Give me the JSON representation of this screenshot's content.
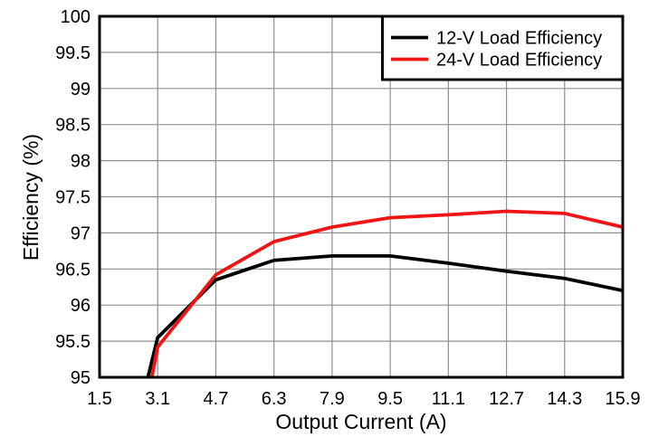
{
  "chart_data": {
    "type": "line",
    "title": "",
    "xlabel": "Output Current (A)",
    "ylabel": "Efficiency (%)",
    "xlim": [
      1.5,
      15.9
    ],
    "ylim": [
      95,
      100
    ],
    "grid": true,
    "legend_position": "top-right",
    "x_ticks": [
      "1.5",
      "3.1",
      "4.7",
      "6.3",
      "7.9",
      "9.5",
      "11.1",
      "12.7",
      "14.3",
      "15.9"
    ],
    "y_ticks": [
      "95",
      "95.5",
      "96",
      "96.5",
      "97",
      "97.5",
      "98",
      "98.5",
      "99",
      "99.5",
      "100"
    ],
    "x": [
      2.83,
      3.1,
      4.7,
      6.3,
      7.9,
      9.5,
      11.1,
      12.7,
      14.3,
      15.9
    ],
    "series": [
      {
        "name": "12-V Load Efficiency",
        "color": "#000000",
        "values": [
          95.0,
          95.55,
          96.35,
          96.62,
          96.68,
          96.68,
          96.58,
          96.47,
          96.37,
          96.2
        ]
      },
      {
        "name": "24-V Load Efficiency",
        "color": "#f01414",
        "values": [
          94.72,
          95.42,
          96.42,
          96.88,
          97.08,
          97.21,
          97.25,
          97.3,
          97.27,
          97.08
        ]
      }
    ],
    "colors": {
      "background": "#ffffff",
      "axis": "#000000",
      "grid": "#8f8f8f"
    }
  }
}
